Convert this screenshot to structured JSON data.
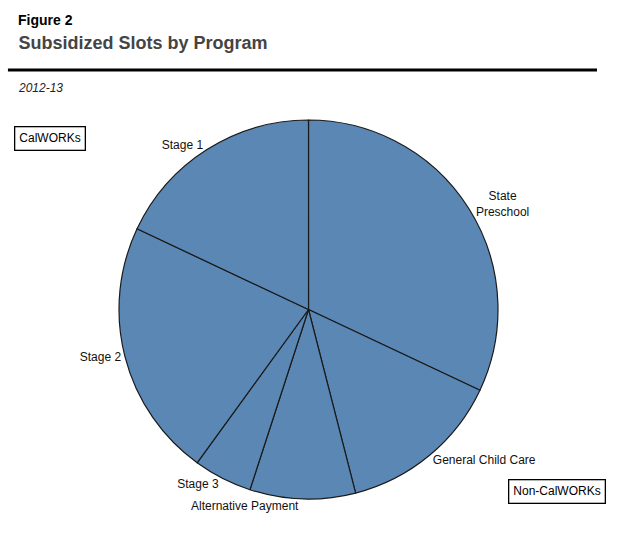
{
  "chart_data": {
    "type": "pie",
    "title": "Subsidized Slots by Program",
    "subtitle": "2012-13",
    "categories": [
      "State\nPreschool",
      "General Child Care",
      "Alternative Payment",
      "Stage 3",
      "Stage 2",
      "Stage 1"
    ],
    "values": [
      32,
      14,
      9,
      5,
      22,
      18
    ],
    "color": "#5b87b5",
    "annotations": [
      "Figure 2",
      "CalWORKs",
      "Non-CalWORKs"
    ]
  }
}
